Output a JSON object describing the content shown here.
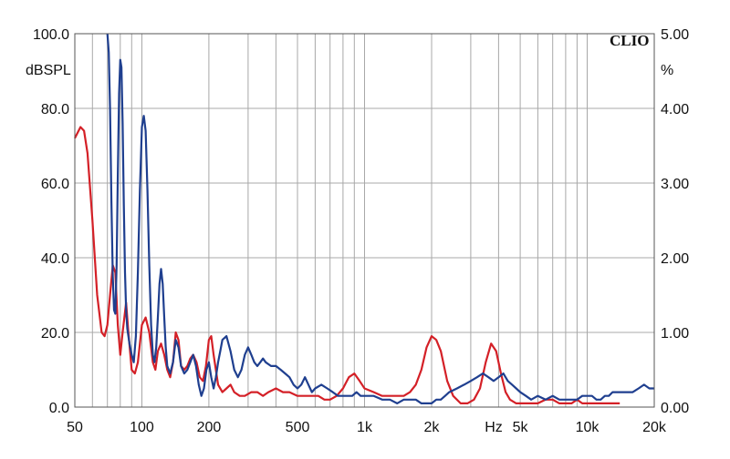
{
  "chart_data": {
    "type": "line",
    "brand": "CLIO",
    "x_scale": "log",
    "xlim": [
      50,
      20000
    ],
    "ylim_left": [
      0,
      100
    ],
    "ylim_right": [
      0,
      5
    ],
    "grid": true,
    "left_axis_unit": "dBSPL",
    "right_axis_unit": "%",
    "x_unit": "Hz",
    "x_ticks": [
      {
        "value": 50,
        "label": "50"
      },
      {
        "value": 100,
        "label": "100"
      },
      {
        "value": 200,
        "label": "200"
      },
      {
        "value": 500,
        "label": "500"
      },
      {
        "value": 1000,
        "label": "1k"
      },
      {
        "value": 2000,
        "label": "2k"
      },
      {
        "value": 5000,
        "label": "5k"
      },
      {
        "value": 10000,
        "label": "10k"
      },
      {
        "value": 20000,
        "label": "20k"
      }
    ],
    "y_ticks_left": [
      {
        "value": 0,
        "label": "0.0"
      },
      {
        "value": 20,
        "label": "20.0"
      },
      {
        "value": 40,
        "label": "40.0"
      },
      {
        "value": 60,
        "label": "60.0"
      },
      {
        "value": 80,
        "label": "80.0"
      },
      {
        "value": 100,
        "label": "100.0"
      }
    ],
    "y_ticks_right": [
      {
        "value": 0,
        "label": "0.00"
      },
      {
        "value": 1,
        "label": "1.00"
      },
      {
        "value": 2,
        "label": "2.00"
      },
      {
        "value": 3,
        "label": "3.00"
      },
      {
        "value": 4,
        "label": "4.00"
      },
      {
        "value": 5,
        "label": "5.00"
      }
    ],
    "series": [
      {
        "color": "#d42027",
        "x": [
          50,
          53,
          55,
          57,
          60,
          63,
          66,
          68,
          70,
          72,
          74,
          76,
          78,
          80,
          82,
          85,
          87,
          90,
          93,
          96,
          100,
          104,
          108,
          112,
          115,
          118,
          122,
          126,
          130,
          134,
          138,
          142,
          146,
          150,
          155,
          160,
          165,
          170,
          176,
          182,
          188,
          194,
          200,
          205,
          210,
          220,
          230,
          240,
          250,
          260,
          275,
          290,
          310,
          330,
          350,
          370,
          400,
          430,
          460,
          500,
          540,
          580,
          620,
          660,
          700,
          750,
          800,
          850,
          900,
          950,
          1000,
          1100,
          1200,
          1300,
          1400,
          1500,
          1600,
          1700,
          1800,
          1900,
          2000,
          2100,
          2200,
          2350,
          2500,
          2700,
          2900,
          3100,
          3300,
          3500,
          3700,
          3900,
          4100,
          4300,
          4500,
          4800,
          5200,
          5600,
          6000,
          6500,
          7000,
          7500,
          8000,
          8500,
          9000,
          9500,
          10000,
          10500,
          11000,
          11500,
          12000,
          12500,
          13000,
          13500,
          14000
        ],
        "values": [
          72,
          75,
          74,
          68,
          50,
          30,
          20,
          19,
          22,
          30,
          38,
          36,
          22,
          14,
          20,
          28,
          20,
          10,
          9,
          12,
          22,
          24,
          20,
          12,
          10,
          15,
          17,
          14,
          10,
          8,
          12,
          20,
          18,
          11,
          10,
          11,
          13,
          14,
          12,
          8,
          7,
          11,
          18,
          19,
          14,
          6,
          4,
          5,
          6,
          4,
          3,
          3,
          4,
          4,
          3,
          4,
          5,
          4,
          4,
          3,
          3,
          3,
          3,
          2,
          2,
          3,
          5,
          8,
          9,
          7,
          5,
          4,
          3,
          3,
          3,
          3,
          4,
          6,
          10,
          16,
          19,
          18,
          15,
          7,
          3,
          1,
          1,
          2,
          5,
          12,
          17,
          15,
          9,
          4,
          2,
          1,
          1,
          1,
          1,
          2,
          2,
          1,
          1,
          1,
          2,
          1,
          1,
          1,
          1,
          1,
          1,
          1,
          1,
          1,
          1
        ]
      },
      {
        "color": "#1f3f8f",
        "x": [
          70,
          71,
          72,
          73,
          74,
          75,
          76,
          77,
          78,
          79,
          80,
          81,
          82,
          83,
          84,
          85,
          86,
          87,
          88,
          90,
          92,
          94,
          96,
          98,
          100,
          102,
          104,
          106,
          108,
          110,
          112,
          114,
          116,
          118,
          120,
          122,
          124,
          126,
          128,
          130,
          134,
          138,
          142,
          146,
          150,
          155,
          160,
          165,
          170,
          175,
          180,
          185,
          190,
          195,
          200,
          205,
          210,
          215,
          220,
          225,
          230,
          240,
          250,
          260,
          270,
          280,
          290,
          300,
          310,
          320,
          330,
          340,
          350,
          360,
          380,
          400,
          420,
          440,
          460,
          480,
          500,
          520,
          540,
          560,
          580,
          600,
          640,
          680,
          720,
          760,
          800,
          840,
          880,
          920,
          960,
          1000,
          1050,
          1100,
          1200,
          1300,
          1400,
          1500,
          1600,
          1700,
          1800,
          1900,
          2000,
          2100,
          2200,
          2300,
          2400,
          2600,
          2800,
          3000,
          3200,
          3400,
          3600,
          3800,
          4000,
          4200,
          4400,
          4600,
          4800,
          5000,
          5300,
          5600,
          6000,
          6500,
          7000,
          7500,
          8000,
          8500,
          9000,
          9500,
          10000,
          10500,
          11000,
          11500,
          12000,
          12500,
          13000,
          13500,
          14000,
          15000,
          16000,
          17000,
          18000,
          19000,
          20000
        ],
        "values": [
          100,
          95,
          80,
          55,
          35,
          26,
          25,
          38,
          62,
          84,
          93,
          91,
          76,
          54,
          36,
          26,
          21,
          19,
          17,
          14,
          12,
          19,
          36,
          58,
          75,
          78,
          74,
          58,
          38,
          22,
          14,
          12,
          16,
          24,
          33,
          37,
          33,
          24,
          16,
          11,
          9,
          12,
          18,
          16,
          11,
          9,
          10,
          12,
          14,
          11,
          6,
          3,
          5,
          10,
          12,
          8,
          5,
          8,
          12,
          15,
          18,
          19,
          15,
          10,
          8,
          10,
          14,
          16,
          14,
          12,
          11,
          12,
          13,
          12,
          11,
          11,
          10,
          9,
          8,
          6,
          5,
          6,
          8,
          6,
          4,
          5,
          6,
          5,
          4,
          3,
          3,
          3,
          3,
          4,
          3,
          3,
          3,
          3,
          2,
          2,
          1,
          2,
          2,
          2,
          1,
          1,
          1,
          2,
          2,
          3,
          4,
          5,
          6,
          7,
          8,
          9,
          8,
          7,
          8,
          9,
          7,
          6,
          5,
          4,
          3,
          2,
          3,
          2,
          3,
          2,
          2,
          2,
          2,
          3,
          3,
          3,
          2,
          2,
          3,
          3,
          4,
          4,
          4,
          4,
          4,
          5,
          6,
          5,
          5
        ]
      }
    ]
  }
}
